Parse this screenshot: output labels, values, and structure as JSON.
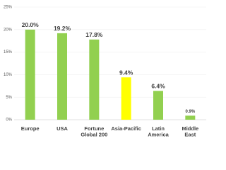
{
  "chart_data": {
    "type": "bar",
    "categories": [
      "Europe",
      "USA",
      "Fortune\nGlobal 200",
      "Asia-Pacific",
      "Latin\nAmerica",
      "Middle\nEast"
    ],
    "values": [
      20.0,
      19.2,
      17.8,
      9.4,
      6.4,
      0.9
    ],
    "value_labels": [
      "20.0%",
      "19.2%",
      "17.8%",
      "9.4%",
      "6.4%",
      "0.9%"
    ],
    "colors": [
      "#92d050",
      "#92d050",
      "#92d050",
      "#ffff00",
      "#92d050",
      "#92d050"
    ],
    "ylim": [
      0,
      25
    ],
    "yticks": [
      {
        "value": 0,
        "label": "0%"
      },
      {
        "value": 5,
        "label": "5%"
      },
      {
        "value": 10,
        "label": "10%"
      },
      {
        "value": 15,
        "label": "15%"
      },
      {
        "value": 20,
        "label": "20%"
      },
      {
        "value": 25,
        "label": "25%"
      }
    ],
    "grid": true
  }
}
